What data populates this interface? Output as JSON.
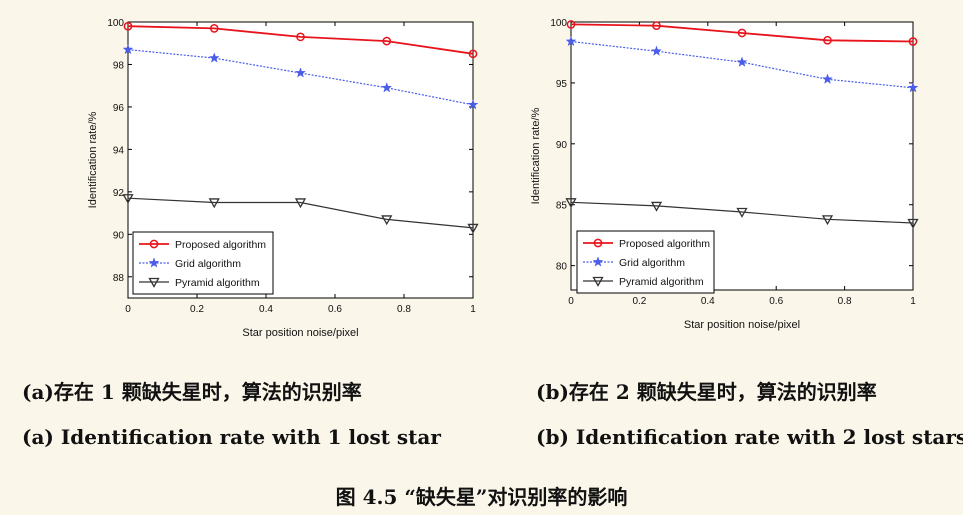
{
  "chart_data": [
    {
      "type": "line",
      "xlabel": "Star position noise/pixel",
      "ylabel": "Identification rate/%",
      "xlim": [
        0,
        1
      ],
      "ylim": [
        87,
        100
      ],
      "xticks": [
        0,
        0.2,
        0.4,
        0.6,
        0.8,
        1
      ],
      "xtick_labels": [
        "0",
        "0.2",
        "0.4",
        "0.6",
        "0.8",
        "1"
      ],
      "yticks": [
        88,
        90,
        92,
        94,
        96,
        98,
        100
      ],
      "ytick_labels": [
        "88",
        "90",
        "92",
        "94",
        "96",
        "98",
        "100"
      ],
      "grid": false,
      "legend_position": "bottom-left",
      "x": [
        0,
        0.25,
        0.5,
        0.75,
        1
      ],
      "series": [
        {
          "name": "Proposed algorithm",
          "values": [
            99.8,
            99.7,
            99.3,
            99.1,
            98.5
          ],
          "color": "#e8141c",
          "marker": "circle"
        },
        {
          "name": "Grid algorithm",
          "values": [
            98.7,
            98.3,
            97.6,
            96.9,
            96.1
          ],
          "color": "#4a5ce8",
          "marker": "star"
        },
        {
          "name": "Pyramid algorithm",
          "values": [
            91.7,
            91.5,
            91.5,
            90.7,
            90.3
          ],
          "color": "#333333",
          "marker": "triangle-down"
        }
      ]
    },
    {
      "type": "line",
      "xlabel": "Star position noise/pixel",
      "ylabel": "Identification rate/%",
      "xlim": [
        0,
        1
      ],
      "ylim": [
        78,
        100
      ],
      "xticks": [
        0,
        0.2,
        0.4,
        0.6,
        0.8,
        1
      ],
      "xtick_labels": [
        "0",
        "0.2",
        "0.4",
        "0.6",
        "0.8",
        "1"
      ],
      "yticks": [
        80,
        85,
        90,
        95,
        100
      ],
      "ytick_labels": [
        "80",
        "85",
        "90",
        "95",
        "100"
      ],
      "grid": false,
      "legend_position": "bottom-left",
      "x": [
        0,
        0.25,
        0.5,
        0.75,
        1
      ],
      "series": [
        {
          "name": "Proposed algorithm",
          "values": [
            99.8,
            99.7,
            99.1,
            98.5,
            98.4
          ],
          "color": "#e8141c",
          "marker": "circle"
        },
        {
          "name": "Grid algorithm",
          "values": [
            98.4,
            97.6,
            96.7,
            95.3,
            94.6
          ],
          "color": "#4a5ce8",
          "marker": "star"
        },
        {
          "name": "Pyramid algorithm",
          "values": [
            85.2,
            84.9,
            84.4,
            83.8,
            83.5
          ],
          "color": "#333333",
          "marker": "triangle-down"
        }
      ]
    }
  ],
  "captions": {
    "a_zh": "(a)存在 1 颗缺失星时，算法的识别率",
    "a_en": "(a) Identification rate with 1 lost star",
    "b_zh": "(b)存在 2 颗缺失星时，算法的识别率",
    "b_en": "(b) Identification rate with 2 lost stars",
    "figure": "图 4.5 “缺失星”对识别率的影响"
  }
}
